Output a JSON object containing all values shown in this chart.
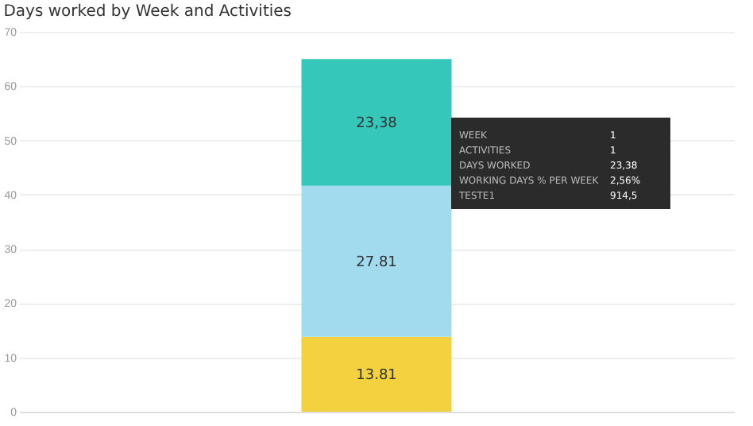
{
  "chart_data": {
    "type": "bar",
    "title": "Days worked by Week and Activities",
    "categories": [
      null
    ],
    "stacked": true,
    "series": [
      {
        "color": "#f4d23f",
        "values": [
          13.81
        ],
        "value_labels": [
          "13.81"
        ]
      },
      {
        "color": "#a3dbee",
        "values": [
          27.81
        ],
        "value_labels": [
          "27.81"
        ]
      },
      {
        "color": "#35c7ba",
        "values": [
          23.38
        ],
        "value_labels": [
          "23,38"
        ]
      }
    ],
    "ylim": [
      0,
      70
    ],
    "yticks": [
      0,
      10,
      20,
      30,
      40,
      50,
      60,
      70
    ],
    "grid": "y",
    "annotations": [
      "WEEK",
      "1",
      "ACTIVITIES",
      "1",
      "DAYS WORKED",
      "23,38",
      "WORKING DAYS % PER WEEK",
      "2,56%",
      "TESTE1",
      "914,5"
    ]
  }
}
